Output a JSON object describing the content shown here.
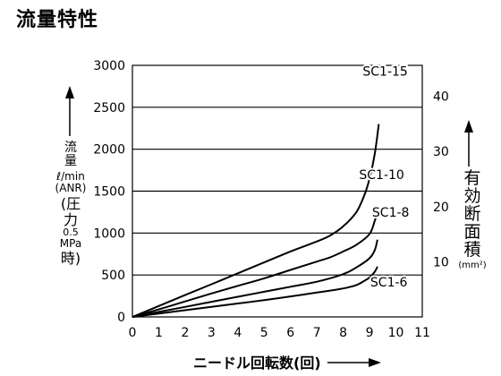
{
  "page_title": "流量特性",
  "chart_data": {
    "type": "line",
    "title": "流量特性",
    "xlabel": "ニードル回転数(回)",
    "ylabel_left": {
      "line1": "流",
      "line2": "量",
      "line3": "ℓ/min",
      "line4": "(ANR)",
      "line5": "(圧",
      "line6": "力",
      "line7": "0.5",
      "line8": "MPa",
      "line9": "時)"
    },
    "ylabel_right": {
      "line1": "有",
      "line2": "効",
      "line3": "断",
      "line4": "面",
      "line5": "積",
      "line6": "(mm²)"
    },
    "x_ticks": [
      "0",
      "1",
      "2",
      "3",
      "4",
      "5",
      "6",
      "7",
      "8",
      "9",
      "10",
      "11"
    ],
    "xlim": [
      0,
      11
    ],
    "y_left_ticks": [
      "0",
      "500",
      "1000",
      "1500",
      "2000",
      "2500",
      "3000"
    ],
    "ylim_left": [
      0,
      3000
    ],
    "y_right_ticks": [
      "10",
      "20",
      "30",
      "40"
    ],
    "ylim_right": [
      0,
      45.6
    ],
    "grid": "horizontal",
    "series": [
      {
        "name": "SC1-15",
        "points": [
          [
            0,
            0
          ],
          [
            1,
            130
          ],
          [
            2,
            260
          ],
          [
            3,
            390
          ],
          [
            4,
            520
          ],
          [
            5,
            650
          ],
          [
            6,
            780
          ],
          [
            7,
            900
          ],
          [
            7.5,
            970
          ],
          [
            8,
            1080
          ],
          [
            8.5,
            1250
          ],
          [
            8.8,
            1450
          ],
          [
            9,
            1650
          ],
          [
            9.2,
            1950
          ],
          [
            9.35,
            2300
          ]
        ]
      },
      {
        "name": "SC1-10",
        "points": [
          [
            0,
            0
          ],
          [
            1,
            90
          ],
          [
            2,
            185
          ],
          [
            3,
            280
          ],
          [
            4,
            370
          ],
          [
            5,
            460
          ],
          [
            6,
            560
          ],
          [
            7,
            660
          ],
          [
            7.5,
            710
          ],
          [
            8,
            780
          ],
          [
            8.5,
            860
          ],
          [
            9,
            990
          ],
          [
            9.2,
            1150
          ],
          [
            9.35,
            1300
          ]
        ]
      },
      {
        "name": "SC1-8",
        "points": [
          [
            0,
            0
          ],
          [
            1,
            60
          ],
          [
            2,
            120
          ],
          [
            3,
            180
          ],
          [
            4,
            240
          ],
          [
            5,
            300
          ],
          [
            6,
            360
          ],
          [
            7,
            420
          ],
          [
            8,
            510
          ],
          [
            8.5,
            590
          ],
          [
            9,
            700
          ],
          [
            9.2,
            800
          ],
          [
            9.3,
            920
          ]
        ]
      },
      {
        "name": "SC1-6",
        "points": [
          [
            0,
            0
          ],
          [
            1,
            40
          ],
          [
            2,
            80
          ],
          [
            3,
            120
          ],
          [
            4,
            160
          ],
          [
            5,
            200
          ],
          [
            6,
            245
          ],
          [
            7,
            290
          ],
          [
            8,
            340
          ],
          [
            8.5,
            380
          ],
          [
            8.8,
            430
          ],
          [
            9,
            470
          ],
          [
            9.2,
            540
          ],
          [
            9.3,
            600
          ]
        ]
      }
    ]
  }
}
